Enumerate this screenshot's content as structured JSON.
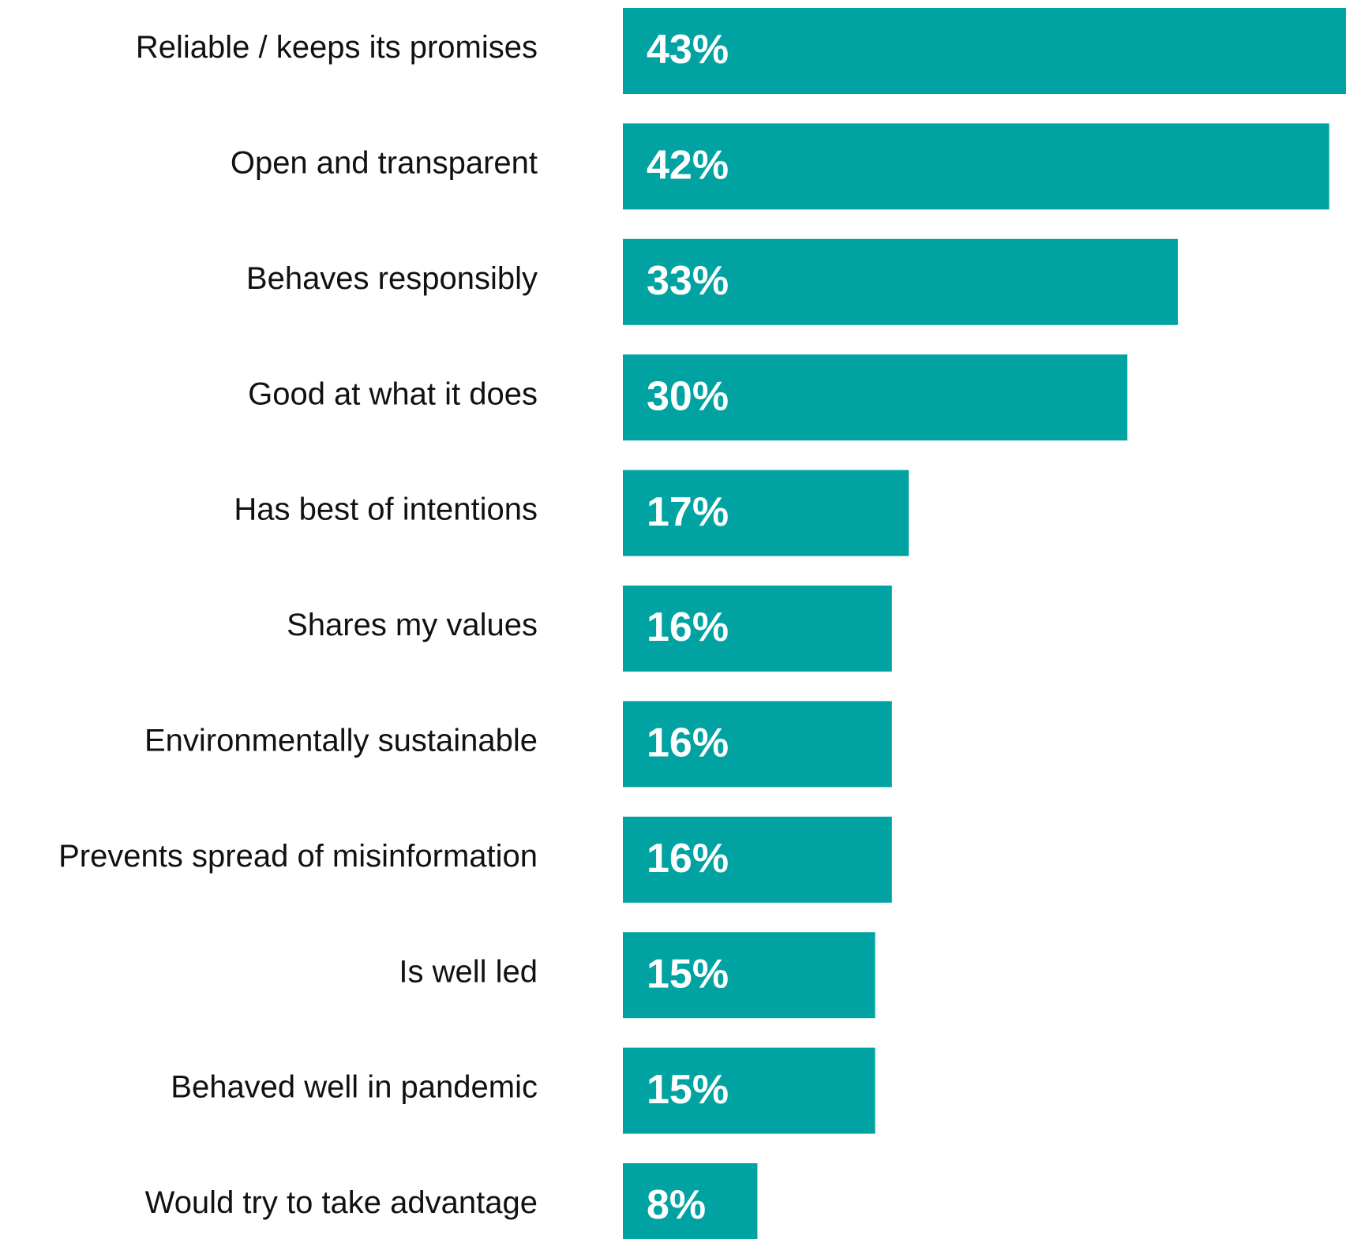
{
  "chart_data": {
    "type": "bar",
    "orientation": "horizontal",
    "categories": [
      "Reliable / keeps its promises",
      "Open and transparent",
      "Behaves responsibly",
      "Good at what it does",
      "Has best of intentions",
      "Shares my values",
      "Environmentally sustainable",
      "Prevents spread of misinformation",
      "Is well led",
      "Behaved well in pandemic",
      "Would try to take advantage"
    ],
    "values": [
      43,
      42,
      33,
      30,
      17,
      16,
      16,
      16,
      15,
      15,
      8
    ],
    "value_labels": [
      "43%",
      "42%",
      "33%",
      "30%",
      "17%",
      "16%",
      "16%",
      "16%",
      "15%",
      "15%",
      "8%"
    ],
    "unit": "%",
    "xlim": [
      0,
      43
    ],
    "grid": false,
    "legend": "none",
    "bar_color": "#00a3a1",
    "label_color": "#111111",
    "value_label_color": "#ffffff"
  }
}
